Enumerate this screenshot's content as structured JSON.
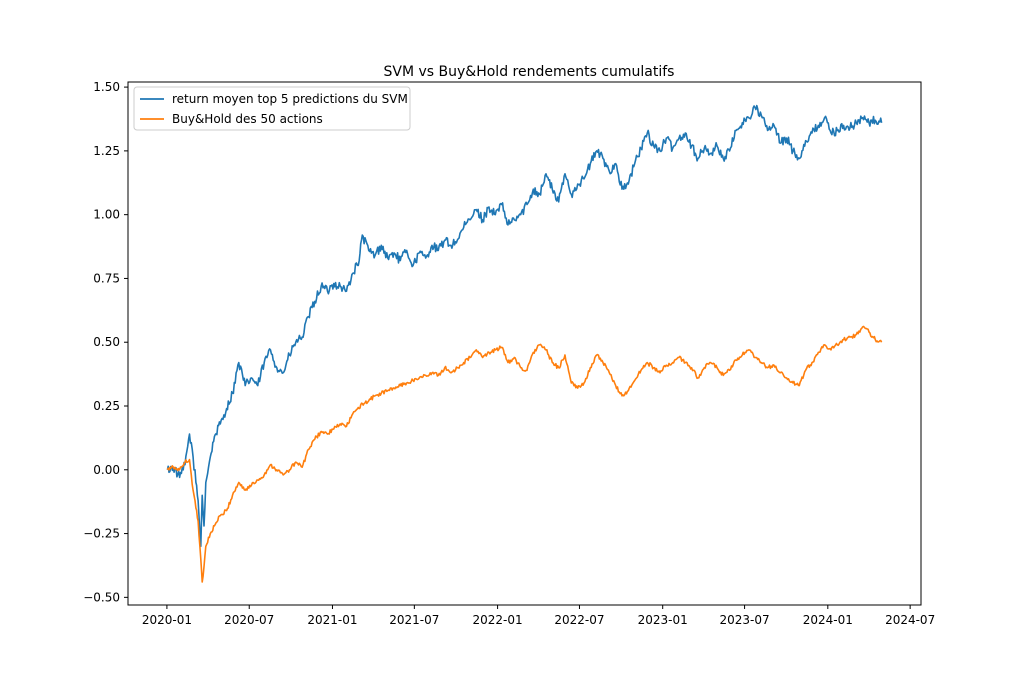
{
  "chart_data": {
    "type": "line",
    "title": "SVM vs Buy&Hold rendements cumulatifs",
    "xlabel": "",
    "ylabel": "",
    "xlim": [
      "2019-10-07",
      "2024-07-25"
    ],
    "ylim": [
      -0.53,
      1.52
    ],
    "x_ticks": [
      "2020-01",
      "2020-07",
      "2021-01",
      "2021-07",
      "2022-01",
      "2022-07",
      "2023-01",
      "2023-07",
      "2024-01",
      "2024-07"
    ],
    "y_ticks": [
      -0.5,
      -0.25,
      0.0,
      0.25,
      0.5,
      0.75,
      1.0,
      1.25,
      1.5
    ],
    "y_tick_labels": [
      "−0.50",
      "−0.25",
      "0.00",
      "0.25",
      "0.50",
      "0.75",
      "1.00",
      "1.25",
      "1.50"
    ],
    "grid": false,
    "legend_position": "top-left",
    "series": [
      {
        "name": "return moyen top 5 predictions du SVM",
        "color": "#1f77b4",
        "points": [
          [
            "2020-01-02",
            0.0
          ],
          [
            "2020-01-15",
            0.01
          ],
          [
            "2020-01-29",
            -0.03
          ],
          [
            "2020-02-10",
            0.02
          ],
          [
            "2020-02-20",
            0.14
          ],
          [
            "2020-02-28",
            0.05
          ],
          [
            "2020-03-05",
            -0.05
          ],
          [
            "2020-03-10",
            -0.12
          ],
          [
            "2020-03-16",
            -0.3
          ],
          [
            "2020-03-19",
            -0.1
          ],
          [
            "2020-03-23",
            -0.22
          ],
          [
            "2020-03-27",
            -0.05
          ],
          [
            "2020-04-06",
            0.05
          ],
          [
            "2020-04-15",
            0.13
          ],
          [
            "2020-04-28",
            0.18
          ],
          [
            "2020-05-12",
            0.24
          ],
          [
            "2020-05-25",
            0.3
          ],
          [
            "2020-06-08",
            0.42
          ],
          [
            "2020-06-22",
            0.33
          ],
          [
            "2020-07-06",
            0.36
          ],
          [
            "2020-07-20",
            0.33
          ],
          [
            "2020-08-03",
            0.42
          ],
          [
            "2020-08-17",
            0.47
          ],
          [
            "2020-08-31",
            0.4
          ],
          [
            "2020-09-14",
            0.38
          ],
          [
            "2020-09-28",
            0.45
          ],
          [
            "2020-10-12",
            0.5
          ],
          [
            "2020-10-26",
            0.52
          ],
          [
            "2020-11-09",
            0.6
          ],
          [
            "2020-11-23",
            0.66
          ],
          [
            "2020-12-07",
            0.72
          ],
          [
            "2020-12-21",
            0.7
          ],
          [
            "2021-01-04",
            0.73
          ],
          [
            "2021-01-18",
            0.72
          ],
          [
            "2021-02-01",
            0.7
          ],
          [
            "2021-02-15",
            0.77
          ],
          [
            "2021-03-01",
            0.82
          ],
          [
            "2021-03-08",
            0.92
          ],
          [
            "2021-03-22",
            0.86
          ],
          [
            "2021-04-05",
            0.84
          ],
          [
            "2021-04-19",
            0.88
          ],
          [
            "2021-05-03",
            0.83
          ],
          [
            "2021-05-17",
            0.85
          ],
          [
            "2021-05-31",
            0.82
          ],
          [
            "2021-06-14",
            0.86
          ],
          [
            "2021-06-28",
            0.8
          ],
          [
            "2021-07-12",
            0.85
          ],
          [
            "2021-07-26",
            0.83
          ],
          [
            "2021-08-09",
            0.88
          ],
          [
            "2021-08-23",
            0.86
          ],
          [
            "2021-09-06",
            0.9
          ],
          [
            "2021-09-20",
            0.88
          ],
          [
            "2021-10-04",
            0.9
          ],
          [
            "2021-10-18",
            0.95
          ],
          [
            "2021-11-01",
            0.98
          ],
          [
            "2021-11-15",
            1.02
          ],
          [
            "2021-11-29",
            0.98
          ],
          [
            "2021-12-13",
            1.03
          ],
          [
            "2021-12-27",
            1.0
          ],
          [
            "2022-01-10",
            1.04
          ],
          [
            "2022-01-24",
            0.96
          ],
          [
            "2022-02-07",
            0.98
          ],
          [
            "2022-02-21",
            1.0
          ],
          [
            "2022-03-07",
            1.04
          ],
          [
            "2022-03-21",
            1.1
          ],
          [
            "2022-04-04",
            1.08
          ],
          [
            "2022-04-18",
            1.16
          ],
          [
            "2022-05-02",
            1.1
          ],
          [
            "2022-05-16",
            1.05
          ],
          [
            "2022-05-30",
            1.16
          ],
          [
            "2022-06-13",
            1.08
          ],
          [
            "2022-06-27",
            1.12
          ],
          [
            "2022-07-11",
            1.14
          ],
          [
            "2022-07-25",
            1.2
          ],
          [
            "2022-08-08",
            1.25
          ],
          [
            "2022-08-22",
            1.22
          ],
          [
            "2022-09-05",
            1.17
          ],
          [
            "2022-09-19",
            1.2
          ],
          [
            "2022-10-03",
            1.1
          ],
          [
            "2022-10-17",
            1.12
          ],
          [
            "2022-10-31",
            1.2
          ],
          [
            "2022-11-14",
            1.26
          ],
          [
            "2022-11-28",
            1.32
          ],
          [
            "2022-12-12",
            1.27
          ],
          [
            "2022-12-26",
            1.25
          ],
          [
            "2023-01-09",
            1.3
          ],
          [
            "2023-01-23",
            1.26
          ],
          [
            "2023-02-06",
            1.3
          ],
          [
            "2023-02-20",
            1.32
          ],
          [
            "2023-03-06",
            1.27
          ],
          [
            "2023-03-20",
            1.22
          ],
          [
            "2023-04-03",
            1.26
          ],
          [
            "2023-04-17",
            1.24
          ],
          [
            "2023-05-01",
            1.27
          ],
          [
            "2023-05-15",
            1.22
          ],
          [
            "2023-05-29",
            1.25
          ],
          [
            "2023-06-12",
            1.33
          ],
          [
            "2023-06-26",
            1.36
          ],
          [
            "2023-07-10",
            1.38
          ],
          [
            "2023-07-24",
            1.42
          ],
          [
            "2023-08-07",
            1.39
          ],
          [
            "2023-08-21",
            1.33
          ],
          [
            "2023-09-04",
            1.35
          ],
          [
            "2023-09-18",
            1.28
          ],
          [
            "2023-10-02",
            1.3
          ],
          [
            "2023-10-16",
            1.25
          ],
          [
            "2023-10-30",
            1.22
          ],
          [
            "2023-11-13",
            1.29
          ],
          [
            "2023-11-27",
            1.32
          ],
          [
            "2023-12-11",
            1.35
          ],
          [
            "2023-12-25",
            1.38
          ],
          [
            "2024-01-08",
            1.32
          ],
          [
            "2024-01-22",
            1.33
          ],
          [
            "2024-02-05",
            1.35
          ],
          [
            "2024-02-19",
            1.34
          ],
          [
            "2024-03-04",
            1.36
          ],
          [
            "2024-03-18",
            1.38
          ],
          [
            "2024-04-01",
            1.36
          ],
          [
            "2024-04-15",
            1.37
          ],
          [
            "2024-04-29",
            1.36
          ]
        ]
      },
      {
        "name": "Buy&Hold des 50 actions",
        "color": "#ff7f0e",
        "points": [
          [
            "2020-01-02",
            0.0
          ],
          [
            "2020-01-15",
            0.01
          ],
          [
            "2020-01-29",
            0.0
          ],
          [
            "2020-02-10",
            0.03
          ],
          [
            "2020-02-20",
            0.04
          ],
          [
            "2020-02-28",
            -0.08
          ],
          [
            "2020-03-05",
            -0.15
          ],
          [
            "2020-03-10",
            -0.2
          ],
          [
            "2020-03-16",
            -0.35
          ],
          [
            "2020-03-19",
            -0.44
          ],
          [
            "2020-03-23",
            -0.38
          ],
          [
            "2020-03-27",
            -0.3
          ],
          [
            "2020-04-06",
            -0.25
          ],
          [
            "2020-04-15",
            -0.22
          ],
          [
            "2020-04-28",
            -0.18
          ],
          [
            "2020-05-12",
            -0.16
          ],
          [
            "2020-05-25",
            -0.1
          ],
          [
            "2020-06-08",
            -0.05
          ],
          [
            "2020-06-22",
            -0.08
          ],
          [
            "2020-07-06",
            -0.06
          ],
          [
            "2020-07-20",
            -0.04
          ],
          [
            "2020-08-03",
            -0.02
          ],
          [
            "2020-08-17",
            0.02
          ],
          [
            "2020-08-31",
            0.0
          ],
          [
            "2020-09-14",
            -0.02
          ],
          [
            "2020-09-28",
            0.0
          ],
          [
            "2020-10-12",
            0.03
          ],
          [
            "2020-10-26",
            0.01
          ],
          [
            "2020-11-09",
            0.08
          ],
          [
            "2020-11-23",
            0.12
          ],
          [
            "2020-12-07",
            0.15
          ],
          [
            "2020-12-21",
            0.14
          ],
          [
            "2021-01-04",
            0.16
          ],
          [
            "2021-01-18",
            0.18
          ],
          [
            "2021-02-01",
            0.17
          ],
          [
            "2021-02-15",
            0.22
          ],
          [
            "2021-03-01",
            0.24
          ],
          [
            "2021-03-08",
            0.26
          ],
          [
            "2021-03-22",
            0.27
          ],
          [
            "2021-04-05",
            0.29
          ],
          [
            "2021-04-19",
            0.3
          ],
          [
            "2021-05-03",
            0.31
          ],
          [
            "2021-05-17",
            0.32
          ],
          [
            "2021-05-31",
            0.33
          ],
          [
            "2021-06-14",
            0.34
          ],
          [
            "2021-06-28",
            0.35
          ],
          [
            "2021-07-12",
            0.36
          ],
          [
            "2021-07-26",
            0.37
          ],
          [
            "2021-08-09",
            0.38
          ],
          [
            "2021-08-23",
            0.37
          ],
          [
            "2021-09-06",
            0.4
          ],
          [
            "2021-09-20",
            0.38
          ],
          [
            "2021-10-04",
            0.4
          ],
          [
            "2021-10-18",
            0.42
          ],
          [
            "2021-11-01",
            0.44
          ],
          [
            "2021-11-15",
            0.47
          ],
          [
            "2021-11-29",
            0.44
          ],
          [
            "2021-12-13",
            0.46
          ],
          [
            "2021-12-27",
            0.47
          ],
          [
            "2022-01-10",
            0.48
          ],
          [
            "2022-01-24",
            0.42
          ],
          [
            "2022-02-07",
            0.44
          ],
          [
            "2022-02-21",
            0.4
          ],
          [
            "2022-03-07",
            0.39
          ],
          [
            "2022-03-21",
            0.46
          ],
          [
            "2022-04-04",
            0.49
          ],
          [
            "2022-04-18",
            0.47
          ],
          [
            "2022-05-02",
            0.42
          ],
          [
            "2022-05-16",
            0.4
          ],
          [
            "2022-05-30",
            0.45
          ],
          [
            "2022-06-13",
            0.34
          ],
          [
            "2022-06-27",
            0.32
          ],
          [
            "2022-07-11",
            0.34
          ],
          [
            "2022-07-25",
            0.4
          ],
          [
            "2022-08-08",
            0.45
          ],
          [
            "2022-08-22",
            0.42
          ],
          [
            "2022-09-05",
            0.38
          ],
          [
            "2022-09-19",
            0.33
          ],
          [
            "2022-10-03",
            0.29
          ],
          [
            "2022-10-17",
            0.31
          ],
          [
            "2022-10-31",
            0.35
          ],
          [
            "2022-11-14",
            0.39
          ],
          [
            "2022-11-28",
            0.42
          ],
          [
            "2022-12-12",
            0.4
          ],
          [
            "2022-12-26",
            0.38
          ],
          [
            "2023-01-09",
            0.41
          ],
          [
            "2023-01-23",
            0.42
          ],
          [
            "2023-02-06",
            0.44
          ],
          [
            "2023-02-20",
            0.42
          ],
          [
            "2023-03-06",
            0.4
          ],
          [
            "2023-03-20",
            0.36
          ],
          [
            "2023-04-03",
            0.4
          ],
          [
            "2023-04-17",
            0.42
          ],
          [
            "2023-05-01",
            0.4
          ],
          [
            "2023-05-15",
            0.37
          ],
          [
            "2023-05-29",
            0.39
          ],
          [
            "2023-06-12",
            0.43
          ],
          [
            "2023-06-26",
            0.45
          ],
          [
            "2023-07-10",
            0.47
          ],
          [
            "2023-07-24",
            0.44
          ],
          [
            "2023-08-07",
            0.42
          ],
          [
            "2023-08-21",
            0.4
          ],
          [
            "2023-09-04",
            0.41
          ],
          [
            "2023-09-18",
            0.38
          ],
          [
            "2023-10-02",
            0.36
          ],
          [
            "2023-10-16",
            0.34
          ],
          [
            "2023-10-30",
            0.33
          ],
          [
            "2023-11-13",
            0.39
          ],
          [
            "2023-11-27",
            0.42
          ],
          [
            "2023-12-11",
            0.46
          ],
          [
            "2023-12-25",
            0.49
          ],
          [
            "2024-01-08",
            0.47
          ],
          [
            "2024-01-22",
            0.49
          ],
          [
            "2024-02-05",
            0.51
          ],
          [
            "2024-02-19",
            0.52
          ],
          [
            "2024-03-04",
            0.53
          ],
          [
            "2024-03-18",
            0.56
          ],
          [
            "2024-04-01",
            0.54
          ],
          [
            "2024-04-15",
            0.51
          ],
          [
            "2024-04-29",
            0.5
          ]
        ]
      }
    ]
  }
}
